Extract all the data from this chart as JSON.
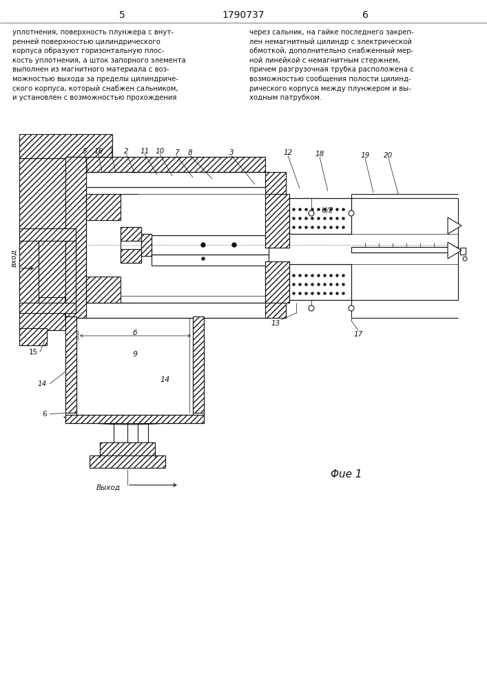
{
  "page_num_left": "5",
  "page_num_center": "1790737",
  "page_num_right": "6",
  "text_left": "уплотнения, поверхность плунжера с внут-\nренней поверхностью цилиндрического\nкорпуса образуют горизонтальную плос-\nкость уплотнения, а шток запорного элемента\nвыполнен из магнитного материала с воз-\nможностью выхода за пределы цилиндриче-\nского корпуса, который снабжен сальником,\nи установлен с возможностью прохождения",
  "text_right": "через сальник, на гайке последнего закреп-\nлен немагнитный цилиндр с электрической\nобмоткой, дополнительно снабженный мер-\nной линейкой с немагнитным стержнем,\nпричем разгрузочная трубка расположена с\nвозможностью сообщения полости цилинд-\nрического корпуса между плунжером и вы-\nходным патрубком.",
  "fig_caption": "Φue 1",
  "vhod": "вход",
  "vykhod": "Выход",
  "b_label": "б",
  "label_9": "9",
  "label_14": "14",
  "U_label": "U/2",
  "bg": "#ffffff",
  "ink": "#111111"
}
